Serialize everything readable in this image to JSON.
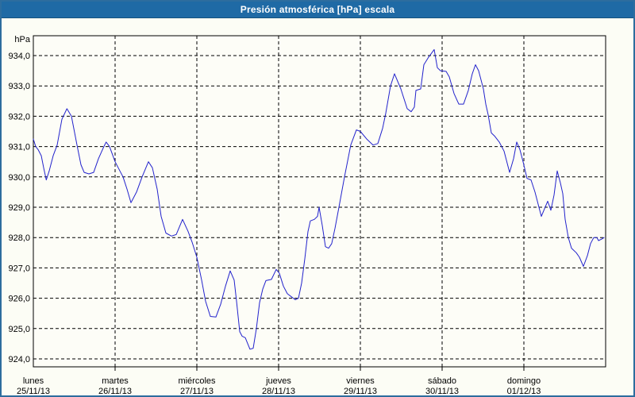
{
  "window": {
    "title": "Presión atmosférica [hPa] escala"
  },
  "colors": {
    "titlebar_bg": "#1f6aa5",
    "titlebar_text": "#ffffff",
    "window_border": "#2d6d9e",
    "window_bg": "#fcfdf5",
    "plot_bg": "#fdfdf7",
    "grid": "#000000",
    "axis": "#000000",
    "text": "#000000",
    "line": "#2222cc"
  },
  "chart_data": {
    "type": "line",
    "title": "Presión atmosférica [hPa] escala",
    "unit_label": "hPa",
    "grid": "dashed",
    "legend": "none",
    "y_axis": {
      "min": 924.0,
      "max": 934.0,
      "step": 1.0,
      "tick_labels": [
        "934,0",
        "933,0",
        "932,0",
        "931,0",
        "930,0",
        "929,0",
        "928,0",
        "927,0",
        "926,0",
        "925,0",
        "924,0"
      ]
    },
    "x_axis": {
      "span_days": 7,
      "days": [
        {
          "name": "lunes",
          "date": "25/11/13"
        },
        {
          "name": "martes",
          "date": "26/11/13"
        },
        {
          "name": "miércoles",
          "date": "27/11/13"
        },
        {
          "name": "jueves",
          "date": "28/11/13"
        },
        {
          "name": "viernes",
          "date": "29/11/13"
        },
        {
          "name": "sábado",
          "date": "30/11/13"
        },
        {
          "name": "domingo",
          "date": "01/12/13"
        }
      ]
    },
    "series": [
      {
        "name": "Presión atmosférica",
        "color": "#2222cc",
        "x_unit": "days_from_start",
        "points": [
          [
            0.0,
            931.25
          ],
          [
            0.029,
            931.0
          ],
          [
            0.058,
            930.9
          ],
          [
            0.097,
            930.7
          ],
          [
            0.126,
            930.3
          ],
          [
            0.158,
            929.9
          ],
          [
            0.194,
            930.2
          ],
          [
            0.243,
            930.7
          ],
          [
            0.291,
            931.05
          ],
          [
            0.35,
            931.9
          ],
          [
            0.411,
            932.25
          ],
          [
            0.466,
            932.0
          ],
          [
            0.534,
            931.05
          ],
          [
            0.583,
            930.4
          ],
          [
            0.621,
            930.15
          ],
          [
            0.68,
            930.1
          ],
          [
            0.738,
            930.15
          ],
          [
            0.796,
            930.6
          ],
          [
            0.854,
            930.95
          ],
          [
            0.89,
            931.15
          ],
          [
            0.932,
            931.0
          ],
          [
            1.0,
            930.5
          ],
          [
            1.049,
            930.25
          ],
          [
            1.097,
            930.0
          ],
          [
            1.146,
            929.6
          ],
          [
            1.194,
            929.15
          ],
          [
            1.262,
            929.5
          ],
          [
            1.33,
            930.0
          ],
          [
            1.408,
            930.5
          ],
          [
            1.456,
            930.3
          ],
          [
            1.515,
            929.6
          ],
          [
            1.563,
            928.7
          ],
          [
            1.621,
            928.15
          ],
          [
            1.689,
            928.05
          ],
          [
            1.748,
            928.1
          ],
          [
            1.825,
            928.6
          ],
          [
            1.893,
            928.2
          ],
          [
            1.942,
            927.85
          ],
          [
            2.0,
            927.35
          ],
          [
            2.058,
            926.6
          ],
          [
            2.107,
            925.9
          ],
          [
            2.165,
            925.4
          ],
          [
            2.233,
            925.38
          ],
          [
            2.291,
            925.8
          ],
          [
            2.35,
            926.4
          ],
          [
            2.408,
            926.9
          ],
          [
            2.456,
            926.6
          ],
          [
            2.485,
            925.9
          ],
          [
            2.505,
            925.4
          ],
          [
            2.524,
            924.9
          ],
          [
            2.553,
            924.75
          ],
          [
            2.592,
            924.7
          ],
          [
            2.65,
            924.32
          ],
          [
            2.689,
            924.35
          ],
          [
            2.728,
            925.0
          ],
          [
            2.767,
            925.85
          ],
          [
            2.806,
            926.3
          ],
          [
            2.845,
            926.58
          ],
          [
            2.913,
            926.62
          ],
          [
            2.971,
            926.95
          ],
          [
            3.01,
            926.82
          ],
          [
            3.058,
            926.4
          ],
          [
            3.107,
            926.15
          ],
          [
            3.155,
            926.05
          ],
          [
            3.204,
            925.95
          ],
          [
            3.243,
            926.0
          ],
          [
            3.282,
            926.5
          ],
          [
            3.32,
            927.3
          ],
          [
            3.359,
            928.2
          ],
          [
            3.388,
            928.55
          ],
          [
            3.437,
            928.6
          ],
          [
            3.476,
            928.7
          ],
          [
            3.495,
            929.0
          ],
          [
            3.534,
            928.4
          ],
          [
            3.573,
            927.7
          ],
          [
            3.612,
            927.65
          ],
          [
            3.65,
            927.8
          ],
          [
            3.689,
            928.3
          ],
          [
            3.738,
            929.0
          ],
          [
            3.806,
            930.0
          ],
          [
            3.883,
            931.05
          ],
          [
            3.951,
            931.55
          ],
          [
            4.0,
            931.5
          ],
          [
            4.078,
            931.25
          ],
          [
            4.155,
            931.05
          ],
          [
            4.214,
            931.1
          ],
          [
            4.272,
            931.6
          ],
          [
            4.311,
            932.1
          ],
          [
            4.369,
            933.0
          ],
          [
            4.417,
            933.4
          ],
          [
            4.495,
            932.9
          ],
          [
            4.573,
            932.25
          ],
          [
            4.621,
            932.15
          ],
          [
            4.66,
            932.3
          ],
          [
            4.68,
            932.85
          ],
          [
            4.738,
            932.9
          ],
          [
            4.777,
            933.7
          ],
          [
            4.835,
            933.95
          ],
          [
            4.903,
            934.2
          ],
          [
            4.942,
            933.6
          ],
          [
            4.981,
            933.5
          ],
          [
            5.049,
            933.48
          ],
          [
            5.087,
            933.3
          ],
          [
            5.146,
            932.75
          ],
          [
            5.204,
            932.4
          ],
          [
            5.262,
            932.4
          ],
          [
            5.32,
            932.85
          ],
          [
            5.369,
            933.4
          ],
          [
            5.408,
            933.7
          ],
          [
            5.447,
            933.5
          ],
          [
            5.505,
            932.9
          ],
          [
            5.534,
            932.4
          ],
          [
            5.563,
            932.05
          ],
          [
            5.602,
            931.45
          ],
          [
            5.641,
            931.35
          ],
          [
            5.699,
            931.15
          ],
          [
            5.757,
            930.85
          ],
          [
            5.825,
            930.15
          ],
          [
            5.874,
            930.6
          ],
          [
            5.913,
            931.15
          ],
          [
            5.951,
            930.9
          ],
          [
            5.99,
            930.5
          ],
          [
            6.039,
            929.95
          ],
          [
            6.087,
            929.9
          ],
          [
            6.136,
            929.5
          ],
          [
            6.175,
            929.1
          ],
          [
            6.214,
            928.7
          ],
          [
            6.252,
            928.95
          ],
          [
            6.291,
            929.2
          ],
          [
            6.33,
            928.9
          ],
          [
            6.369,
            929.4
          ],
          [
            6.408,
            930.2
          ],
          [
            6.447,
            929.8
          ],
          [
            6.476,
            929.45
          ],
          [
            6.505,
            928.6
          ],
          [
            6.544,
            928.0
          ],
          [
            6.583,
            927.65
          ],
          [
            6.641,
            927.5
          ],
          [
            6.68,
            927.35
          ],
          [
            6.728,
            927.05
          ],
          [
            6.777,
            927.4
          ],
          [
            6.816,
            927.8
          ],
          [
            6.854,
            928.0
          ],
          [
            6.893,
            928.0
          ],
          [
            6.913,
            927.9
          ],
          [
            6.952,
            927.95
          ],
          [
            6.981,
            928.0
          ]
        ]
      }
    ]
  }
}
